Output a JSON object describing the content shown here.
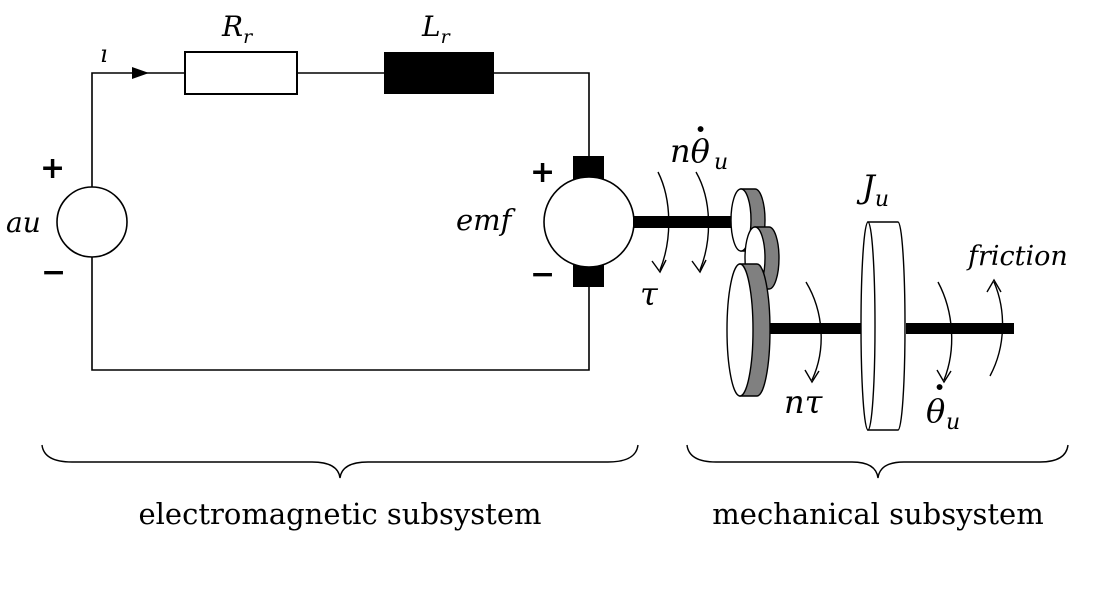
{
  "labels": {
    "current": "ı",
    "resistor": "R",
    "resistor_sub": "r",
    "inductor": "L",
    "inductor_sub": "r",
    "source": "au",
    "source_plus": "+",
    "source_minus": "−",
    "emf": "emf",
    "motor_plus": "+",
    "motor_minus": "−",
    "tau": "τ",
    "n_theta": "nθ",
    "n_theta_dot": "·",
    "n_theta_sub": "u",
    "inertia": "J",
    "inertia_sub": "u",
    "friction": "friction",
    "n_tau": "nτ",
    "theta": "θ",
    "theta_dot": "·",
    "theta_sub": "u"
  },
  "captions": {
    "electromagnetic": "electromagnetic subsystem",
    "mechanical": "mechanical subsystem"
  },
  "colors": {
    "line": "#000000",
    "gear_shade": "#808080",
    "background": "#ffffff"
  }
}
